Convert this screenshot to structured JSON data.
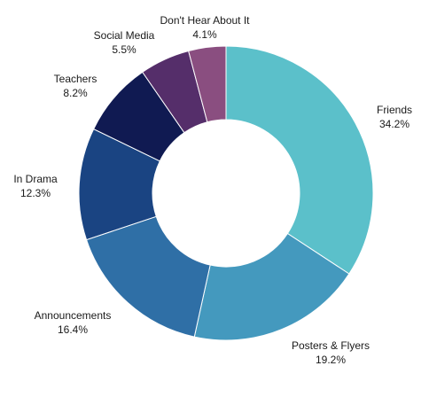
{
  "chart_data": {
    "type": "pie",
    "donut": true,
    "legend": "none",
    "slices": [
      {
        "label": "Friends",
        "value": 34.2,
        "value_label": "34.2%",
        "color": "#5BC0CA"
      },
      {
        "label": "Posters & Flyers",
        "value": 19.2,
        "value_label": "19.2%",
        "color": "#4499BE"
      },
      {
        "label": "Announcements",
        "value": 16.4,
        "value_label": "16.4%",
        "color": "#2F6FA6"
      },
      {
        "label": "In Drama",
        "value": 12.3,
        "value_label": "12.3%",
        "color": "#1A4482"
      },
      {
        "label": "Teachers",
        "value": 8.2,
        "value_label": "8.2%",
        "color": "#101A52"
      },
      {
        "label": "Social Media",
        "value": 5.5,
        "value_label": "5.5%",
        "color": "#552E6A"
      },
      {
        "label": "Don't Hear About It",
        "value": 4.1,
        "value_label": "4.1%",
        "color": "#8A4E80"
      }
    ]
  }
}
